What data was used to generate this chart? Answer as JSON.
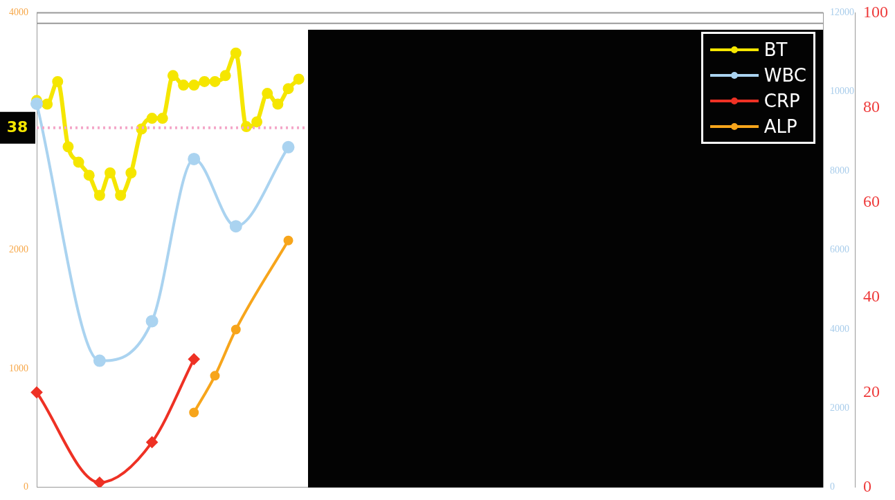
{
  "chart_data": {
    "type": "line",
    "categories": [
      null,
      null,
      null,
      null,
      null,
      null,
      null,
      null,
      null,
      null,
      null,
      null,
      null,
      null,
      null,
      null,
      null,
      null,
      null,
      null,
      null,
      null,
      null,
      null,
      null,
      null,
      null,
      null,
      null,
      null,
      null,
      null,
      null,
      null,
      null,
      null,
      null,
      null,
      null,
      null,
      null,
      null,
      null,
      null,
      null,
      null,
      null,
      null,
      null,
      null,
      null,
      null,
      null,
      null,
      null,
      null,
      null,
      null,
      null,
      null,
      null,
      null,
      null,
      null,
      null,
      null,
      null,
      null,
      null,
      null,
      null,
      null,
      null,
      null,
      null,
      null
    ],
    "series": [
      {
        "name": "BT",
        "color": "#f5e600",
        "axis": "y",
        "marker": "circle",
        "values": [
          3260,
          3230,
          3420,
          2870,
          2740,
          2630,
          2460,
          2650,
          2460,
          2650,
          3020,
          3110,
          3110,
          3470,
          3390,
          3390,
          3420,
          3420,
          3470,
          3660,
          3040,
          3080,
          3320,
          3230,
          3360,
          3440,
          null,
          null,
          null,
          null,
          null,
          null,
          null,
          null,
          null,
          null,
          null,
          null,
          null,
          null,
          null,
          null,
          null,
          null,
          null,
          null,
          null,
          null,
          null,
          null,
          null,
          null,
          null,
          null,
          null,
          null,
          null,
          null,
          null,
          null,
          null,
          null,
          null,
          null,
          null,
          null,
          null,
          null,
          null,
          null,
          null,
          null,
          null,
          null,
          null,
          null
        ]
      },
      {
        "name": "WBC",
        "color": "#aad3f0",
        "axis": "y2",
        "marker": "circle",
        "values": [
          9700,
          null,
          null,
          null,
          null,
          null,
          3200,
          null,
          null,
          null,
          null,
          4200,
          null,
          null,
          null,
          8300,
          null,
          null,
          null,
          6600,
          null,
          null,
          null,
          null,
          8600,
          null,
          null,
          null,
          null,
          null,
          null,
          null,
          null,
          null,
          null,
          null,
          null,
          null,
          null,
          null,
          null,
          null,
          null,
          null,
          null,
          null,
          null,
          null,
          null,
          null,
          null,
          null,
          null,
          null,
          null,
          null,
          null,
          null,
          null,
          null,
          null,
          null,
          null,
          null,
          null,
          null,
          null,
          null,
          null,
          null,
          null,
          null,
          null,
          null,
          null,
          null
        ]
      },
      {
        "name": "CRP",
        "color": "#ee3124",
        "axis": "y3",
        "marker": "diamond",
        "values": [
          20,
          null,
          null,
          null,
          null,
          null,
          1,
          null,
          null,
          null,
          null,
          9.5,
          null,
          null,
          null,
          27,
          null,
          null,
          null,
          null,
          null,
          null,
          null,
          null,
          null,
          null,
          null,
          null,
          null,
          null,
          null,
          null,
          null,
          null,
          null,
          null,
          null,
          null,
          null,
          null,
          null,
          null,
          null,
          null,
          null,
          null,
          null,
          null,
          null,
          null,
          null,
          null,
          null,
          null,
          null,
          null,
          null,
          null,
          null,
          null,
          null,
          null,
          null,
          null,
          null,
          null,
          null,
          null,
          null,
          null,
          null,
          null,
          null,
          null,
          null,
          null
        ]
      },
      {
        "name": "ALP",
        "color": "#f7a51b",
        "axis": "y",
        "marker": "circle",
        "values": [
          null,
          null,
          null,
          null,
          null,
          null,
          null,
          null,
          null,
          null,
          null,
          null,
          null,
          null,
          null,
          630,
          null,
          940,
          null,
          1330,
          null,
          null,
          null,
          null,
          2080,
          null,
          null,
          null,
          null,
          null,
          null,
          null,
          null,
          null,
          null,
          null,
          null,
          null,
          null,
          null,
          null,
          null,
          null,
          null,
          null,
          null,
          null,
          null,
          null,
          null,
          null,
          null,
          null,
          null,
          null,
          null,
          null,
          null,
          null,
          null,
          null,
          null,
          null,
          null,
          null,
          null,
          null,
          null,
          null,
          null,
          null,
          null,
          null,
          null,
          null,
          null
        ]
      }
    ],
    "ylim": [
      0,
      4000
    ],
    "yticks": [
      0,
      1000,
      2000,
      4000
    ],
    "y2lim": [
      0,
      12000
    ],
    "y2ticks": [
      0,
      2000,
      4000,
      6000,
      8000,
      10000,
      12000
    ],
    "y3lim": [
      0,
      100
    ],
    "y3ticks": [
      0,
      20,
      40,
      60,
      80,
      100
    ],
    "ref_lines": [
      {
        "axis": "y",
        "value": 3030,
        "color": "#f4a6c8",
        "line_style": "dotted"
      },
      {
        "axis": "y",
        "value": 3910,
        "color": "#999999",
        "line_style": "solid"
      }
    ],
    "annotations": [
      "38"
    ],
    "legend": "top right"
  }
}
